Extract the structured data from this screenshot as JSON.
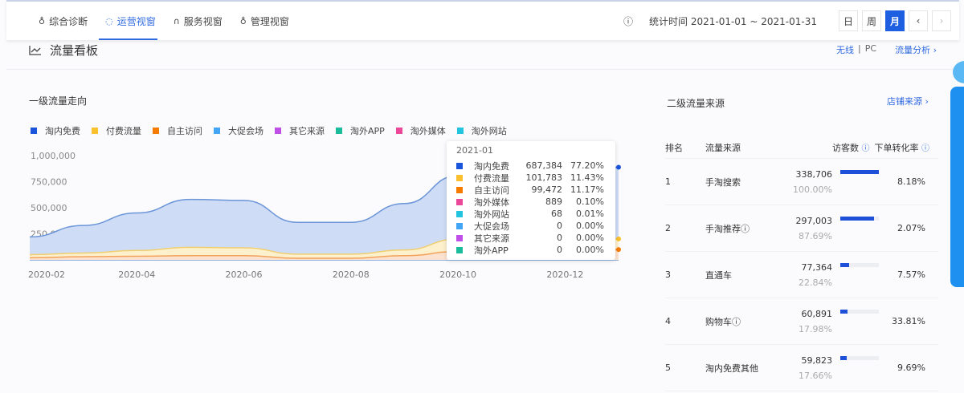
{
  "nav": {
    "tabs": [
      {
        "icon": "bulb-icon",
        "glyph": "♁",
        "label": "综合诊断"
      },
      {
        "icon": "shield-icon",
        "glyph": "◌",
        "label": "运营视窗"
      },
      {
        "icon": "headset-icon",
        "glyph": "∩",
        "label": "服务视窗"
      },
      {
        "icon": "bag-icon",
        "glyph": "♁",
        "label": "管理视窗"
      }
    ],
    "active": 1
  },
  "header": {
    "info_glyph": "ⓘ",
    "date_range": "统计时间 2021-01-01 ~ 2021-01-31",
    "buttons": [
      "日",
      "周",
      "月"
    ],
    "active_button": "月",
    "prev": "‹",
    "next": "›"
  },
  "section": {
    "icon_glyph": "📈",
    "title": "流量看板",
    "device_wireless": "无线",
    "device_sep": "|",
    "device_pc": "PC",
    "analysis_link": "流量分析 ›"
  },
  "colors": {
    "accent": "#1d5fe0",
    "free": "#1a56db",
    "paid": "#fbc02d",
    "self": "#f57c00",
    "promo": "#42a5f5",
    "other": "#c04fe8",
    "app": "#1abc9c",
    "media": "#ec4899",
    "web": "#22c5dd"
  },
  "primary": {
    "title": "一级流量走向"
  },
  "chart_data": {
    "type": "area",
    "stacked": true,
    "title": "一级流量走向",
    "x": [
      "2020-02",
      "2020-03",
      "2020-04",
      "2020-05",
      "2020-06",
      "2020-07",
      "2020-08",
      "2020-09",
      "2020-10",
      "2020-11",
      "2020-12",
      "2021-01"
    ],
    "xticks": [
      "2020-02",
      "2020-04",
      "2020-06",
      "2020-08",
      "2020-10",
      "2020-12"
    ],
    "yticks": [
      "0",
      "250,000",
      "500,000",
      "750,000",
      "1,000,000"
    ],
    "ylim": [
      0,
      1000000
    ],
    "legend": [
      "淘内免费",
      "付费流量",
      "自主访问",
      "大促会场",
      "其它来源",
      "淘外APP",
      "淘外媒体",
      "淘外网站"
    ],
    "legend_position": "top-left",
    "series": [
      {
        "name": "自主访问",
        "color": "#f57c00",
        "values": [
          20000,
          30000,
          35000,
          40000,
          40000,
          15000,
          15000,
          40000,
          80000,
          90000,
          95000,
          99472
        ]
      },
      {
        "name": "付费流量",
        "color": "#fbc02d",
        "values": [
          30000,
          35000,
          55000,
          80000,
          75000,
          40000,
          40000,
          55000,
          120000,
          110000,
          105000,
          101783
        ]
      },
      {
        "name": "淘内免费",
        "color": "#1a56db",
        "values": [
          170000,
          265000,
          360000,
          460000,
          455000,
          305000,
          305000,
          445000,
          610000,
          660000,
          670000,
          687384
        ]
      }
    ],
    "legend_colors": [
      "#1a56db",
      "#fbc02d",
      "#f57c00",
      "#42a5f5",
      "#c04fe8",
      "#1abc9c",
      "#ec4899",
      "#22c5dd"
    ]
  },
  "tooltip": {
    "title": "2021-01",
    "rows": [
      {
        "name": "淘内免费",
        "color": "#1a56db",
        "value": "687,384",
        "pct": "77.20%"
      },
      {
        "name": "付费流量",
        "color": "#fbc02d",
        "value": "101,783",
        "pct": "11.43%"
      },
      {
        "name": "自主访问",
        "color": "#f57c00",
        "value": "99,472",
        "pct": "11.17%"
      },
      {
        "name": "淘外媒体",
        "color": "#ec4899",
        "value": "889",
        "pct": "0.10%"
      },
      {
        "name": "淘外网站",
        "color": "#22c5dd",
        "value": "68",
        "pct": "0.01%"
      },
      {
        "name": "大促会场",
        "color": "#42a5f5",
        "value": "0",
        "pct": "0.00%"
      },
      {
        "name": "其它来源",
        "color": "#c04fe8",
        "value": "0",
        "pct": "0.00%"
      },
      {
        "name": "淘外APP",
        "color": "#1abc9c",
        "value": "0",
        "pct": "0.00%"
      }
    ]
  },
  "secondary": {
    "title": "二级流量来源",
    "link": "店铺来源 ›",
    "headers": {
      "rank": "排名",
      "source": "流量来源",
      "visitors": "访客数",
      "conversion": "下单转化率",
      "info": "ⓘ"
    },
    "rows": [
      {
        "rank": "1",
        "source": "手淘搜索",
        "info": "",
        "visitors": "338,706",
        "share": "100.00%",
        "bar": 1.0,
        "conv": "8.18%"
      },
      {
        "rank": "2",
        "source": "手淘推荐",
        "info": "ⓘ",
        "visitors": "297,003",
        "share": "87.69%",
        "bar": 0.877,
        "conv": "2.07%"
      },
      {
        "rank": "3",
        "source": "直通车",
        "info": "",
        "visitors": "77,364",
        "share": "22.84%",
        "bar": 0.228,
        "conv": "7.57%"
      },
      {
        "rank": "4",
        "source": "购物车",
        "info": "ⓘ",
        "visitors": "60,891",
        "share": "17.98%",
        "bar": 0.18,
        "conv": "33.81%"
      },
      {
        "rank": "5",
        "source": "淘内免费其他",
        "info": "",
        "visitors": "59,823",
        "share": "17.66%",
        "bar": 0.177,
        "conv": "9.69%"
      }
    ]
  }
}
